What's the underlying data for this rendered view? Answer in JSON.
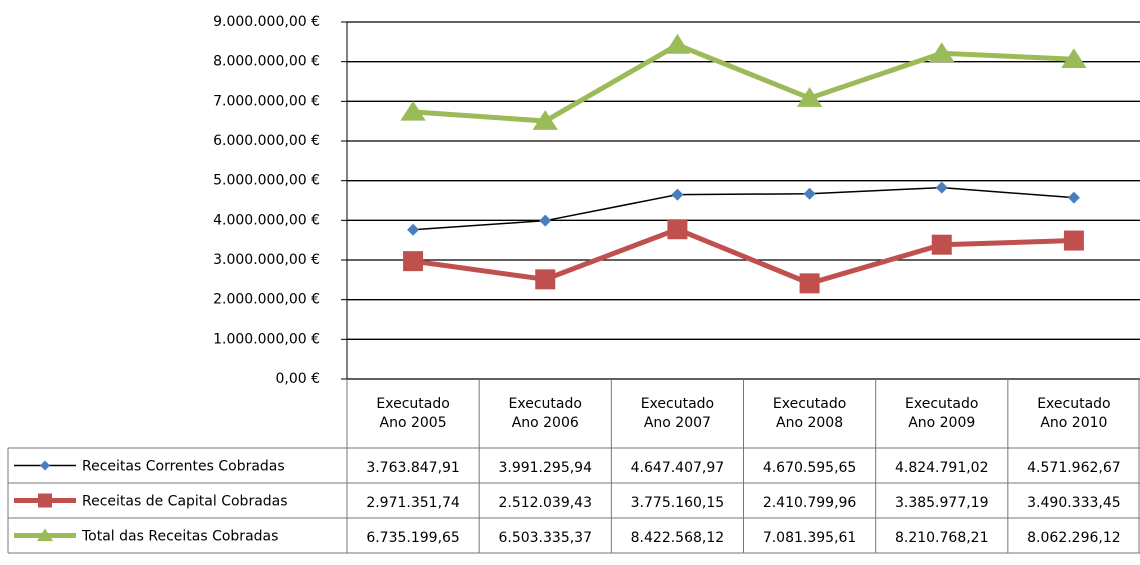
{
  "chart_data": {
    "type": "line",
    "categories": [
      "Executado Ano 2005",
      "Executado Ano 2006",
      "Executado Ano 2007",
      "Executado Ano 2008",
      "Executado Ano 2009",
      "Executado Ano 2010"
    ],
    "series": [
      {
        "name": "Receitas Correntes Cobradas",
        "color": "#4a7ebb",
        "line_color": "#000000",
        "marker": "diamond",
        "values": [
          3763847.91,
          3991295.94,
          4647407.97,
          4670595.65,
          4824791.02,
          4571962.67
        ],
        "value_labels": [
          "3.763.847,91",
          "3.991.295,94",
          "4.647.407,97",
          "4.670.595,65",
          "4.824.791,02",
          "4.571.962,67"
        ]
      },
      {
        "name": "Receitas de Capital Cobradas",
        "color": "#c0504d",
        "line_color": "#c0504d",
        "marker": "square",
        "values": [
          2971351.74,
          2512039.43,
          3775160.15,
          2410799.96,
          3385977.19,
          3490333.45
        ],
        "value_labels": [
          "2.971.351,74",
          "2.512.039,43",
          "3.775.160,15",
          "2.410.799,96",
          "3.385.977,19",
          "3.490.333,45"
        ]
      },
      {
        "name": "Total das Receitas Cobradas",
        "color": "#9bbb59",
        "line_color": "#9bbb59",
        "marker": "triangle",
        "values": [
          6735199.65,
          6503335.37,
          8422568.12,
          7081395.61,
          8210768.21,
          8062296.12
        ],
        "value_labels": [
          "6.735.199,65",
          "6.503.335,37",
          "8.422.568,12",
          "7.081.395,61",
          "8.210.768,21",
          "8.062.296,12"
        ]
      }
    ],
    "ylim": [
      0,
      9000000
    ],
    "yticks": [
      {
        "value": 0,
        "label": "0,00 €"
      },
      {
        "value": 1000000,
        "label": "1.000.000,00 €"
      },
      {
        "value": 2000000,
        "label": "2.000.000,00 €"
      },
      {
        "value": 3000000,
        "label": "3.000.000,00 €"
      },
      {
        "value": 4000000,
        "label": "4.000.000,00 €"
      },
      {
        "value": 5000000,
        "label": "5.000.000,00 €"
      },
      {
        "value": 6000000,
        "label": "6.000.000,00 €"
      },
      {
        "value": 7000000,
        "label": "7.000.000,00 €"
      },
      {
        "value": 8000000,
        "label": "8.000.000,00 €"
      },
      {
        "value": 9000000,
        "label": "9.000.000,00 €"
      }
    ],
    "grid": true
  }
}
